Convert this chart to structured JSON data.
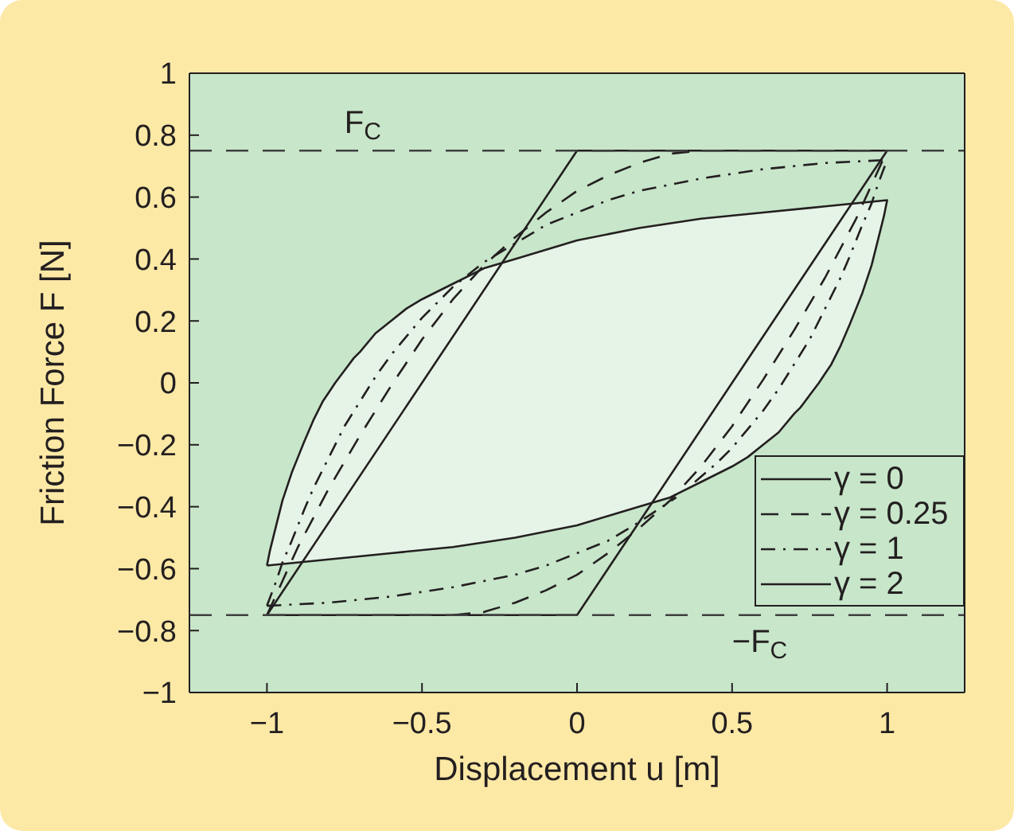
{
  "chart_data": {
    "type": "line",
    "xlabel": "Displacement u [m]",
    "ylabel": "Friction Force F [N]",
    "xlim": [
      -1.25,
      1.25
    ],
    "xticks": [
      -1,
      -0.5,
      0,
      0.5,
      1
    ],
    "ylim": [
      -1,
      1
    ],
    "yticks": [
      -1,
      -0.8,
      -0.6,
      -0.4,
      -0.2,
      0,
      0.2,
      0.4,
      0.6,
      0.8,
      1
    ],
    "legend": "bottom right",
    "ref_lines": [
      {
        "axis": "y",
        "value": 0.75,
        "label": "F$_{C}$",
        "line_style": "dashed",
        "color": "#404040"
      },
      {
        "axis": "y",
        "value": -0.75,
        "label": "−F$_{C}$",
        "line_style": "dashed",
        "color": "#404040"
      }
    ],
    "series": [
      {
        "name": "γ = 0",
        "color": "#231f20",
        "line_style": "solid",
        "x": [
          -1,
          0,
          1
        ],
        "values": [
          -0.75,
          0.75,
          0.75
        ]
      },
      {
        "color": "#231f20",
        "line_style": "solid",
        "x": [
          -1,
          0
        ],
        "values": [
          -0.75,
          -0.75
        ]
      },
      {
        "color": "#231f20",
        "line_style": "solid",
        "x": [
          0,
          1
        ],
        "values": [
          -0.75,
          0.75
        ]
      },
      {
        "name": "γ = 0.25",
        "color": "#231f20",
        "line_style": "dashed",
        "x": [
          -1,
          -0.95,
          -0.9,
          -0.8,
          -0.7,
          -0.6,
          -0.5,
          -0.4,
          -0.3,
          -0.2,
          -0.1,
          0,
          0.1,
          0.2,
          0.3,
          0.4
        ],
        "values": [
          -0.75,
          -0.64,
          -0.53,
          -0.34,
          -0.17,
          -0.01,
          0.14,
          0.27,
          0.38,
          0.47,
          0.55,
          0.62,
          0.67,
          0.71,
          0.74,
          0.75
        ]
      },
      {
        "color": "#231f20",
        "line_style": "dashed",
        "x": [
          -0.4,
          -0.3,
          -0.2,
          -0.1,
          0,
          0.1,
          0.2,
          0.3,
          0.4,
          0.5,
          0.6,
          0.7,
          0.8,
          0.9,
          0.95,
          1
        ],
        "values": [
          -0.75,
          -0.74,
          -0.71,
          -0.67,
          -0.62,
          -0.55,
          -0.47,
          -0.38,
          -0.27,
          -0.14,
          0.01,
          0.17,
          0.34,
          0.53,
          0.64,
          0.75
        ]
      },
      {
        "name": "γ = 1",
        "color": "#231f20",
        "line_style": "dashdot",
        "x": [
          -1,
          -0.97,
          -0.95,
          -0.92,
          -0.9,
          -0.88,
          -0.85,
          -0.8,
          -0.75,
          -0.7,
          -0.65,
          -0.6,
          -0.55,
          -0.5,
          -0.45,
          -0.4,
          -0.35,
          -0.3,
          -0.2,
          -0.1,
          0,
          0.1,
          0.2,
          0.3,
          0.4,
          0.6,
          0.8,
          1
        ],
        "values": [
          -0.72,
          -0.64,
          -0.58,
          -0.51,
          -0.46,
          -0.41,
          -0.34,
          -0.24,
          -0.14,
          -0.06,
          0.02,
          0.09,
          0.15,
          0.21,
          0.26,
          0.31,
          0.35,
          0.39,
          0.45,
          0.51,
          0.55,
          0.59,
          0.62,
          0.64,
          0.66,
          0.69,
          0.71,
          0.72
        ]
      },
      {
        "color": "#231f20",
        "line_style": "dashdot",
        "x": [
          -1,
          -0.8,
          -0.6,
          -0.4,
          -0.3,
          -0.2,
          -0.1,
          0,
          0.1,
          0.2,
          0.32,
          0.35,
          0.38,
          0.45,
          0.5,
          0.55,
          0.6,
          0.65,
          0.7,
          0.75,
          0.8,
          0.85,
          0.88,
          0.9,
          0.92,
          0.95,
          0.97,
          1
        ],
        "values": [
          -0.72,
          -0.71,
          -0.69,
          -0.66,
          -0.64,
          -0.62,
          -0.59,
          -0.55,
          -0.51,
          -0.45,
          -0.37,
          null,
          -0.32,
          -0.26,
          -0.21,
          -0.15,
          -0.09,
          -0.02,
          0.06,
          0.14,
          0.24,
          0.34,
          0.41,
          0.46,
          0.51,
          0.58,
          0.64,
          0.72
        ]
      },
      {
        "name": "γ = 2",
        "type": "area",
        "color": "#231f20",
        "line_style": "solid",
        "x": [
          -1,
          -0.99,
          -0.97,
          -0.95,
          -0.92,
          -0.9,
          -0.88,
          -0.85,
          -0.82,
          -0.8,
          -0.78,
          -0.75,
          -0.72,
          -0.7,
          -0.65,
          -0.6,
          -0.55,
          -0.5,
          -0.4,
          -0.3,
          -0.2,
          -0.1,
          0,
          0.2,
          0.4,
          0.6,
          0.8,
          1,
          0.99,
          0.97,
          0.95,
          0.92,
          0.9,
          0.88,
          0.85,
          0.82,
          0.8,
          0.78,
          0.75,
          0.72,
          0.7,
          0.65,
          0.6,
          0.55,
          0.5,
          0.4,
          0.3,
          0.2,
          0.1,
          0,
          -0.2,
          -0.4,
          -0.6,
          -0.8,
          -1
        ],
        "values": [
          -0.59,
          -0.54,
          -0.46,
          -0.38,
          -0.29,
          -0.24,
          -0.19,
          -0.12,
          -0.06,
          -0.03,
          0,
          0.04,
          0.08,
          0.1,
          0.16,
          0.2,
          0.24,
          0.27,
          0.32,
          0.37,
          0.4,
          0.43,
          0.46,
          0.5,
          0.53,
          0.55,
          0.57,
          0.59,
          0.54,
          0.46,
          0.38,
          0.29,
          0.24,
          0.19,
          0.12,
          0.06,
          0.03,
          0,
          -0.04,
          -0.08,
          -0.1,
          -0.16,
          -0.2,
          -0.24,
          -0.27,
          -0.32,
          -0.37,
          -0.4,
          -0.43,
          -0.46,
          -0.5,
          -0.53,
          -0.55,
          -0.57,
          -0.59
        ]
      }
    ]
  }
}
